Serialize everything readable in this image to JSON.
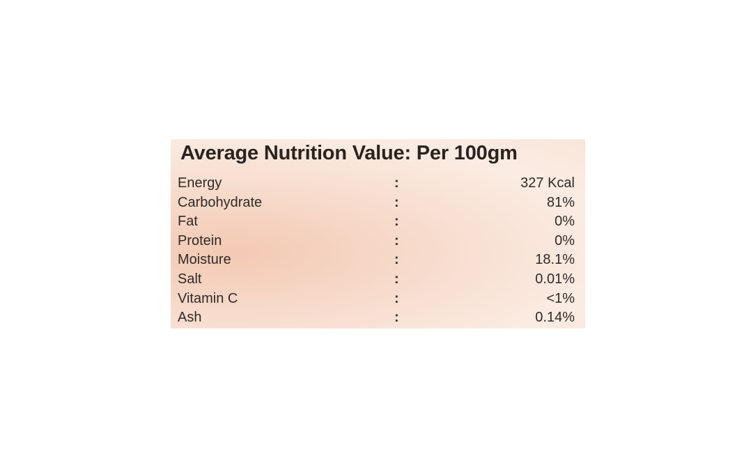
{
  "title": "Average Nutrition Value: Per 100gm",
  "table": {
    "rows": [
      [
        "Energy",
        ":",
        "327 Kcal"
      ],
      [
        "Carbohydrate",
        ":",
        "81%"
      ],
      [
        "Fat",
        ":",
        "0%"
      ],
      [
        "Protein",
        ":",
        "0%"
      ],
      [
        "Moisture",
        ":",
        "18.1%"
      ],
      [
        "Salt",
        ":",
        "0.01%"
      ],
      [
        "Vitamin C",
        ":",
        "<1%"
      ],
      [
        "Ash",
        ":",
        "0.14%"
      ]
    ]
  }
}
